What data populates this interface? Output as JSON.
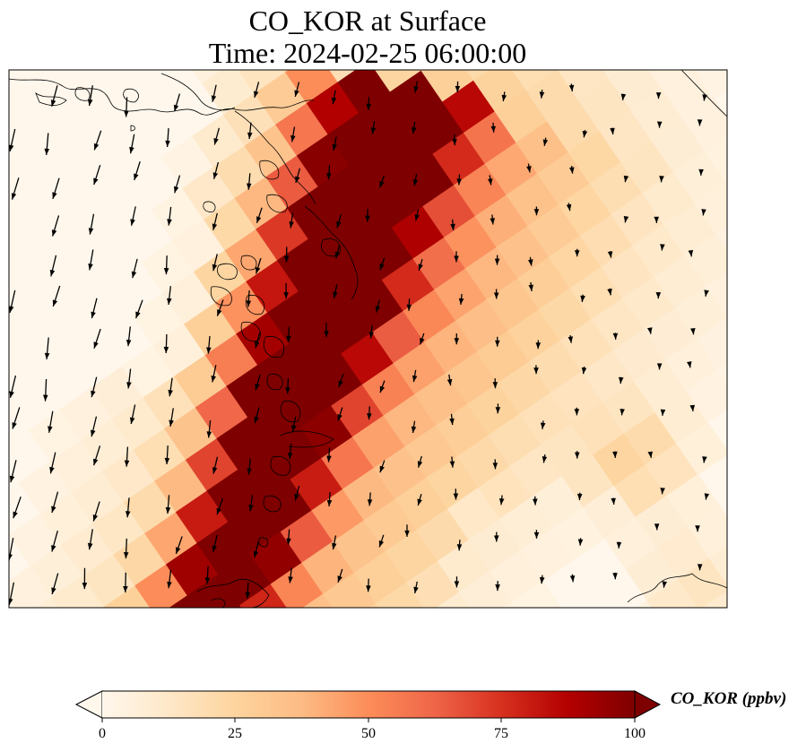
{
  "title": {
    "line1": "CO_KOR at Surface",
    "line2": "Time: 2024-02-25 06:00:00"
  },
  "colorbar": {
    "label": "CO_KOR (ppbv)",
    "ticks": [
      "0",
      "25",
      "50",
      "75",
      "100"
    ],
    "min": 0,
    "max": 100,
    "extend": "both",
    "colormap": "OrRd",
    "colors": [
      "#fff7ec",
      "#fee8c8",
      "#fdd49e",
      "#fdbb84",
      "#fc8d59",
      "#ef6548",
      "#d7301f",
      "#b30000",
      "#7f0000"
    ]
  },
  "map": {
    "field": "CO_KOR",
    "level": "Surface",
    "overlays": [
      "coastlines",
      "wind-vectors"
    ],
    "plume_direction": "southwest-northeast",
    "peak_value": 100
  }
}
